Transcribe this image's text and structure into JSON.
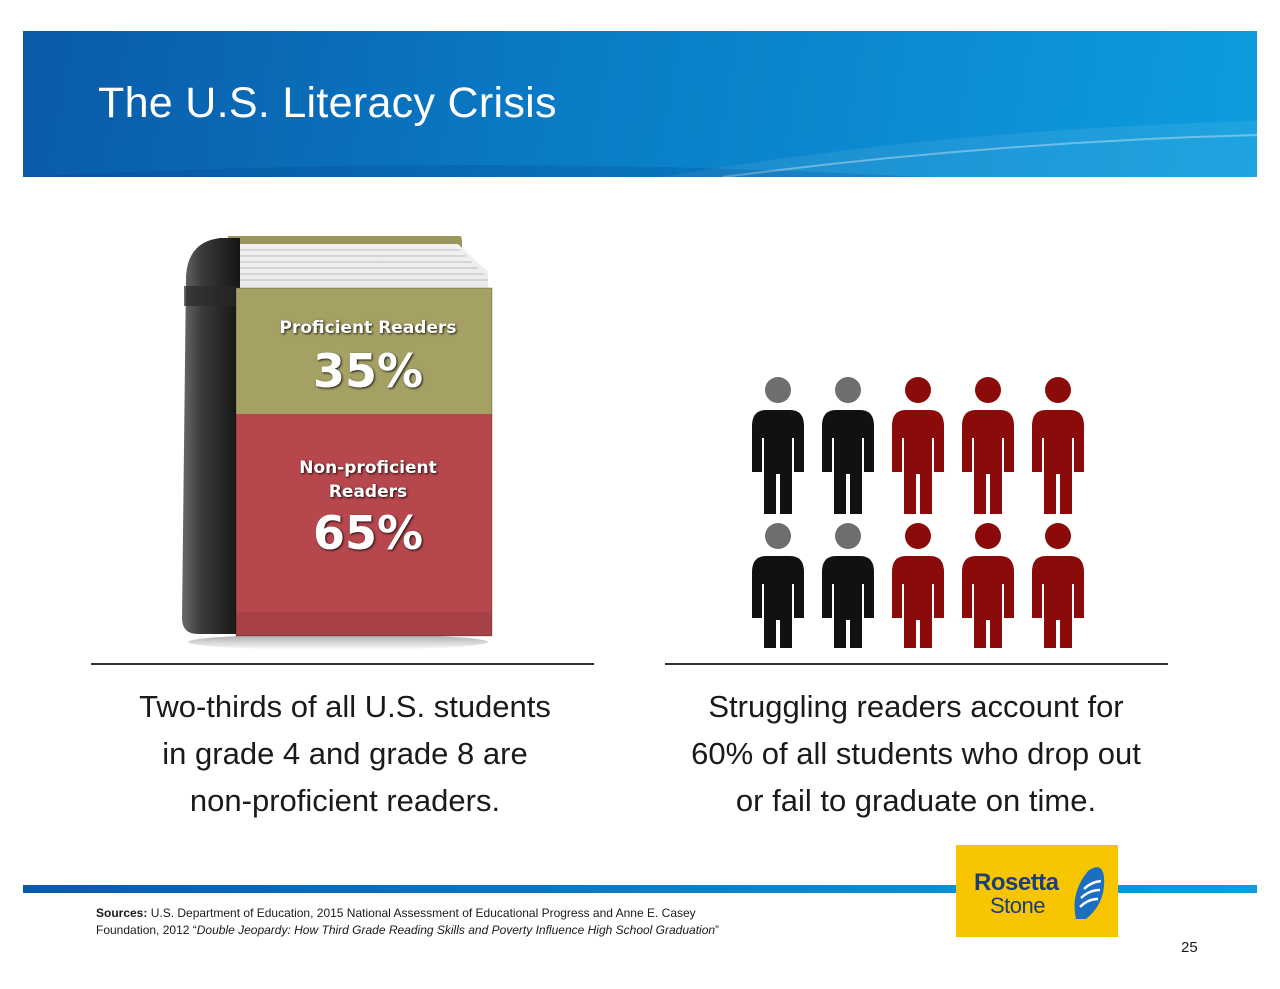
{
  "slide": {
    "title": "The U.S. Literacy Crisis",
    "page_number": "25"
  },
  "book": {
    "proficient_label": "Proficient Readers",
    "proficient_pct": "35%",
    "nonproficient_label_line1": "Non-proficient",
    "nonproficient_label_line2": "Readers",
    "nonproficient_pct": "65%",
    "proficient_fraction": 0.35,
    "colors": {
      "proficient": "#a5a165",
      "nonproficient": "#b5474d",
      "spine": "#2b2b2b"
    }
  },
  "people": {
    "rows": 2,
    "per_row": 5,
    "highlighted_per_row": 3,
    "colors": {
      "black": "#111111",
      "red": "#8b0b0b"
    },
    "icon": "person-icon"
  },
  "captions": {
    "left": [
      "Two-thirds of all U.S. students",
      "in grade 4 and grade 8 are",
      "non-proficient readers."
    ],
    "right": [
      "Struggling readers account for",
      "60% of all students who drop out",
      "or fail to graduate on time."
    ]
  },
  "sources": {
    "label": "Sources:",
    "text1": " U.S. Department of Education, 2015 National Assessment of Educational Progress and Anne E. Casey",
    "text2": "Foundation, 2012 “",
    "title_italic": "Double Jeopardy: How Third Grade Reading Skills and Poverty Influence High School Graduation",
    "text3": "”"
  },
  "logo": {
    "word1": "Rosetta",
    "word2": "Stone",
    "colors": {
      "background": "#f7c600",
      "text": "#1c3f78"
    }
  },
  "theme": {
    "banner_dark": "#0a5aa8",
    "banner_light": "#0d9ddf"
  }
}
